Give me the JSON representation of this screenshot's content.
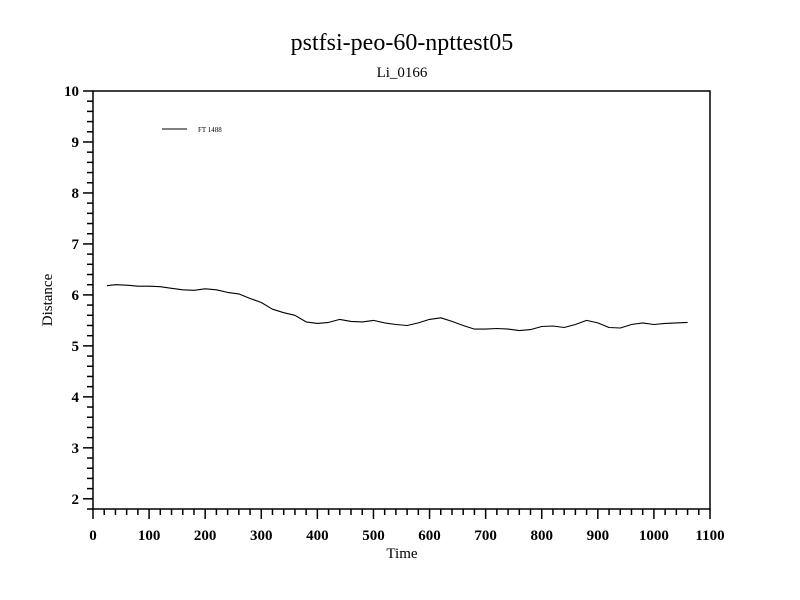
{
  "chart_data": {
    "type": "line",
    "title": "pstfsi-peo-60-npttest05",
    "subtitle": "Li_0166",
    "xlabel": "Time",
    "ylabel": "Distance",
    "xlim": [
      0,
      1100
    ],
    "ylim": [
      1.8,
      10
    ],
    "xticks": [
      0,
      100,
      200,
      300,
      400,
      500,
      600,
      700,
      800,
      900,
      1000,
      1100
    ],
    "yticks": [
      2,
      3,
      4,
      5,
      6,
      7,
      8,
      9,
      10
    ],
    "grid": false,
    "legend_position": "top-left",
    "series": [
      {
        "name": "FT 1488",
        "color": "#000000",
        "x": [
          25,
          40,
          60,
          80,
          100,
          120,
          140,
          160,
          180,
          200,
          220,
          240,
          260,
          280,
          300,
          320,
          340,
          360,
          380,
          400,
          420,
          440,
          460,
          480,
          500,
          520,
          540,
          560,
          580,
          600,
          620,
          640,
          660,
          680,
          700,
          720,
          740,
          760,
          780,
          800,
          820,
          840,
          860,
          880,
          900,
          920,
          940,
          960,
          980,
          1000,
          1020,
          1040,
          1060
        ],
        "y": [
          6.18,
          6.2,
          6.19,
          6.17,
          6.17,
          6.16,
          6.13,
          6.1,
          6.09,
          6.12,
          6.1,
          6.05,
          6.02,
          5.93,
          5.85,
          5.72,
          5.65,
          5.6,
          5.47,
          5.44,
          5.46,
          5.52,
          5.48,
          5.47,
          5.5,
          5.45,
          5.42,
          5.4,
          5.45,
          5.52,
          5.55,
          5.48,
          5.4,
          5.33,
          5.33,
          5.34,
          5.33,
          5.3,
          5.32,
          5.38,
          5.39,
          5.36,
          5.42,
          5.5,
          5.45,
          5.36,
          5.35,
          5.42,
          5.45,
          5.42,
          5.44,
          5.45,
          5.46
        ]
      }
    ]
  }
}
